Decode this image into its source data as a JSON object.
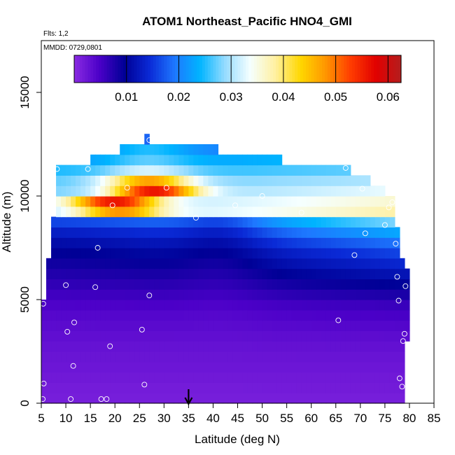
{
  "chart_data": {
    "type": "heatmap",
    "title": "ATOM1 Northeast_Pacific HNO4_GMI",
    "subtitle_flights": "Flts: 1,2",
    "subtitle_dates": "MMDD: 0729,0801",
    "xlabel": "Latitude (deg N)",
    "ylabel": "Altitude (m)",
    "xlim": [
      5,
      85
    ],
    "ylim": [
      0,
      17500
    ],
    "x_ticks": [
      5,
      10,
      15,
      20,
      25,
      30,
      35,
      40,
      45,
      50,
      55,
      60,
      65,
      70,
      75,
      80,
      85
    ],
    "y_ticks": [
      0,
      5000,
      10000,
      15000
    ],
    "colorbar": {
      "range": [
        0,
        0.0625
      ],
      "ticks": [
        0.01,
        0.02,
        0.03,
        0.04,
        0.05,
        0.06
      ],
      "tick_labels": [
        "0.01",
        "0.02",
        "0.03",
        "0.04",
        "0.05",
        "0.06"
      ],
      "colors": [
        "#8a2be2",
        "#4b00c8",
        "#000096",
        "#0a2ad6",
        "#1e78ff",
        "#00b4ff",
        "#96dcff",
        "#f5ffff",
        "#fff0a0",
        "#ffd700",
        "#ff9600",
        "#ff3c00",
        "#e10000",
        "#b41e1e"
      ]
    },
    "marker_latitude": 35,
    "cell_size": {
      "lat": 1,
      "alt_m": 500
    },
    "profile_rows": [
      {
        "alt": 250,
        "lat_min": 5,
        "lat_max": 79,
        "core": 0.0015,
        "peak": 0.0015,
        "peak_lat": 40,
        "north": 0.0015
      },
      {
        "alt": 750,
        "lat_min": 5,
        "lat_max": 79,
        "core": 0.0017,
        "peak": 0.0017,
        "peak_lat": 40,
        "north": 0.0018
      },
      {
        "alt": 1250,
        "lat_min": 5,
        "lat_max": 79,
        "core": 0.002,
        "peak": 0.002,
        "peak_lat": 40,
        "north": 0.002
      },
      {
        "alt": 1750,
        "lat_min": 5,
        "lat_max": 79,
        "core": 0.0023,
        "peak": 0.0023,
        "peak_lat": 40,
        "north": 0.0023
      },
      {
        "alt": 2250,
        "lat_min": 5,
        "lat_max": 79,
        "core": 0.0025,
        "peak": 0.0025,
        "peak_lat": 40,
        "north": 0.0026
      },
      {
        "alt": 2750,
        "lat_min": 5,
        "lat_max": 79,
        "core": 0.0028,
        "peak": 0.0028,
        "peak_lat": 40,
        "north": 0.003
      },
      {
        "alt": 3250,
        "lat_min": 5,
        "lat_max": 80,
        "core": 0.0032,
        "peak": 0.0032,
        "peak_lat": 40,
        "north": 0.0035
      },
      {
        "alt": 3750,
        "lat_min": 5,
        "lat_max": 80,
        "core": 0.0036,
        "peak": 0.0036,
        "peak_lat": 40,
        "north": 0.0042
      },
      {
        "alt": 4250,
        "lat_min": 5,
        "lat_max": 80,
        "core": 0.004,
        "peak": 0.004,
        "peak_lat": 40,
        "north": 0.005
      },
      {
        "alt": 4750,
        "lat_min": 5,
        "lat_max": 80,
        "core": 0.0046,
        "peak": 0.0046,
        "peak_lat": 40,
        "north": 0.006
      },
      {
        "alt": 5250,
        "lat_min": 6,
        "lat_max": 80,
        "core": 0.0055,
        "peak": 0.0055,
        "peak_lat": 40,
        "north": 0.008
      },
      {
        "alt": 5750,
        "lat_min": 6,
        "lat_max": 80,
        "core": 0.0065,
        "peak": 0.0065,
        "peak_lat": 40,
        "north": 0.01
      },
      {
        "alt": 6250,
        "lat_min": 6,
        "lat_max": 80,
        "core": 0.0075,
        "peak": 0.0075,
        "peak_lat": 40,
        "north": 0.012
      },
      {
        "alt": 6750,
        "lat_min": 6,
        "lat_max": 79,
        "core": 0.0085,
        "peak": 0.0085,
        "peak_lat": 40,
        "north": 0.014
      },
      {
        "alt": 7250,
        "lat_min": 7,
        "lat_max": 78,
        "core": 0.0095,
        "peak": 0.0095,
        "peak_lat": 40,
        "north": 0.016
      },
      {
        "alt": 7750,
        "lat_min": 7,
        "lat_max": 78,
        "core": 0.011,
        "peak": 0.011,
        "peak_lat": 40,
        "north": 0.019
      },
      {
        "alt": 8250,
        "lat_min": 7,
        "lat_max": 78,
        "core": 0.013,
        "peak": 0.013,
        "peak_lat": 40,
        "north": 0.023
      },
      {
        "alt": 8750,
        "lat_min": 7,
        "lat_max": 77,
        "core": 0.016,
        "peak": 0.016,
        "peak_lat": 40,
        "north": 0.028
      },
      {
        "alt": 9250,
        "lat_min": 8,
        "lat_max": 77,
        "core": 0.03,
        "peak": 0.048,
        "peak_lat": 21,
        "north": 0.038
      },
      {
        "alt": 9750,
        "lat_min": 8,
        "lat_max": 77,
        "core": 0.03,
        "peak": 0.056,
        "peak_lat": 20,
        "north": 0.036
      },
      {
        "alt": 10250,
        "lat_min": 8,
        "lat_max": 75,
        "core": 0.028,
        "peak": 0.056,
        "peak_lat": 28,
        "north": 0.033
      },
      {
        "alt": 10750,
        "lat_min": 8,
        "lat_max": 72,
        "core": 0.027,
        "peak": 0.047,
        "peak_lat": 27,
        "north": 0.03
      },
      {
        "alt": 11250,
        "lat_min": 8,
        "lat_max": 68,
        "core": 0.025,
        "peak": 0.032,
        "peak_lat": 27,
        "north": 0.027
      },
      {
        "alt": 11750,
        "lat_min": 15,
        "lat_max": 54,
        "core": 0.022,
        "peak": 0.027,
        "peak_lat": 27,
        "north": 0.024
      },
      {
        "alt": 12250,
        "lat_min": 21,
        "lat_max": 41,
        "core": 0.02,
        "peak": 0.025,
        "peak_lat": 27,
        "north": 0.02
      },
      {
        "alt": 12750,
        "lat_min": 26,
        "lat_max": 27,
        "core": 0.018,
        "peak": 0.018,
        "peak_lat": 27,
        "north": 0.018
      }
    ],
    "flight_points": [
      {
        "lat": 5.3,
        "alt": 200
      },
      {
        "lat": 5.5,
        "alt": 950
      },
      {
        "lat": 5.4,
        "alt": 4800
      },
      {
        "lat": 11,
        "alt": 200
      },
      {
        "lat": 11.5,
        "alt": 1800
      },
      {
        "lat": 10.3,
        "alt": 3450
      },
      {
        "lat": 11.7,
        "alt": 3900
      },
      {
        "lat": 10,
        "alt": 5700
      },
      {
        "lat": 8.2,
        "alt": 11300
      },
      {
        "lat": 14.5,
        "alt": 11300
      },
      {
        "lat": 16.5,
        "alt": 7500
      },
      {
        "lat": 16,
        "alt": 5600
      },
      {
        "lat": 17.2,
        "alt": 200
      },
      {
        "lat": 18.3,
        "alt": 200
      },
      {
        "lat": 19,
        "alt": 2750
      },
      {
        "lat": 19.5,
        "alt": 9550
      },
      {
        "lat": 22.5,
        "alt": 10400
      },
      {
        "lat": 25.5,
        "alt": 3550
      },
      {
        "lat": 26,
        "alt": 900
      },
      {
        "lat": 27,
        "alt": 5200
      },
      {
        "lat": 27,
        "alt": 12700
      },
      {
        "lat": 30.5,
        "alt": 10400
      },
      {
        "lat": 36.5,
        "alt": 8950
      },
      {
        "lat": 44.5,
        "alt": 9550
      },
      {
        "lat": 50,
        "alt": 10000
      },
      {
        "lat": 58,
        "alt": 9200
      },
      {
        "lat": 65.5,
        "alt": 4000
      },
      {
        "lat": 67,
        "alt": 11350
      },
      {
        "lat": 68.8,
        "alt": 7150
      },
      {
        "lat": 70.4,
        "alt": 10350
      },
      {
        "lat": 71,
        "alt": 8200
      },
      {
        "lat": 75,
        "alt": 8600
      },
      {
        "lat": 75.8,
        "alt": 9450
      },
      {
        "lat": 76.5,
        "alt": 9700
      },
      {
        "lat": 77.2,
        "alt": 7700
      },
      {
        "lat": 77.5,
        "alt": 6100
      },
      {
        "lat": 77.8,
        "alt": 4950
      },
      {
        "lat": 78,
        "alt": 1200
      },
      {
        "lat": 78.5,
        "alt": 800
      },
      {
        "lat": 78.7,
        "alt": 3000
      },
      {
        "lat": 79,
        "alt": 3350
      },
      {
        "lat": 79.2,
        "alt": 5650
      }
    ]
  }
}
